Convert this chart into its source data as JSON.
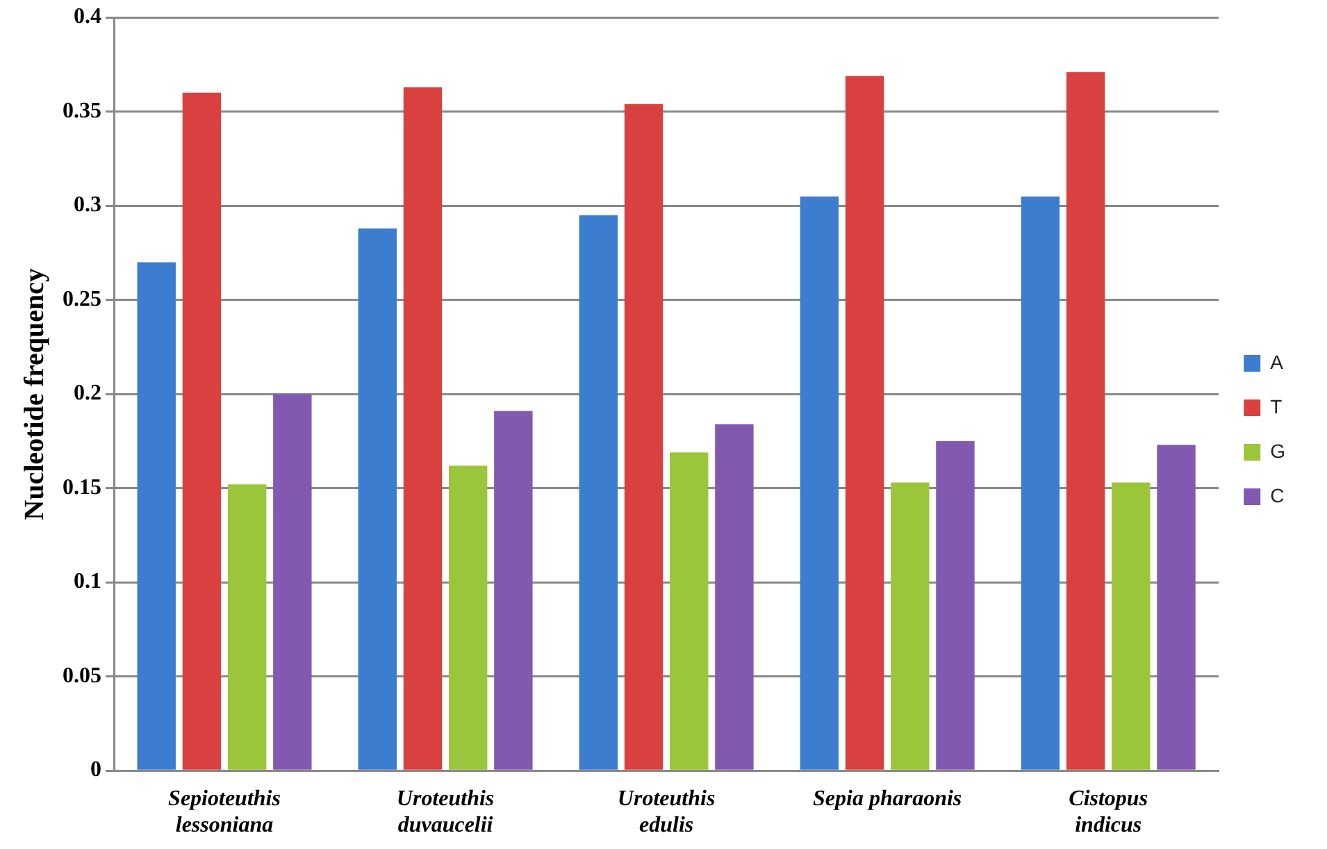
{
  "chart_data": {
    "type": "bar",
    "ylabel": "Nucleotide frequency",
    "categories": [
      "Sepioteuthis\nlessoniana",
      "Uroteuthis\nduvaucelii",
      "Uroteuthis\nedulis",
      "Sepia pharaonis",
      "Cistopus\nindicus"
    ],
    "series": [
      {
        "name": "A",
        "color": "#3c7dd0",
        "values": [
          0.27,
          0.288,
          0.295,
          0.305,
          0.305
        ]
      },
      {
        "name": "T",
        "color": "#d94040",
        "values": [
          0.36,
          0.363,
          0.354,
          0.369,
          0.371
        ]
      },
      {
        "name": "G",
        "color": "#9bc63c",
        "values": [
          0.152,
          0.162,
          0.169,
          0.153,
          0.153
        ]
      },
      {
        "name": "C",
        "color": "#8259b0",
        "values": [
          0.2,
          0.191,
          0.184,
          0.175,
          0.173
        ]
      }
    ],
    "ylim": [
      0,
      0.4
    ],
    "yticks": [
      0,
      0.05,
      0.1,
      0.15,
      0.2,
      0.25,
      0.3,
      0.35,
      0.4
    ],
    "grid": "y",
    "legend": "right"
  }
}
